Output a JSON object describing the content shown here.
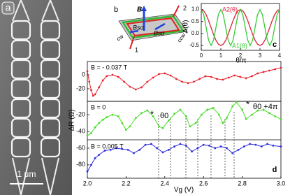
{
  "panel_a": {
    "label": "a",
    "scale_bar": "1 μm"
  },
  "panel_b": {
    "label": "b",
    "field": "B",
    "so_left": "Bso",
    "so_right": "Bso",
    "cw": "cw",
    "ccw": "ccw",
    "lead_1": "1",
    "lead_2": "2"
  },
  "chart_data": [
    {
      "type": "line",
      "label": "c",
      "xlabel": "θ/π",
      "ylabel": "A(θ)",
      "x": [
        0,
        0.125,
        0.25,
        0.375,
        0.5,
        0.625,
        0.75,
        0.875,
        1,
        1.125,
        1.25,
        1.375,
        1.5,
        1.625,
        1.75,
        1.875,
        2,
        2.125,
        2.25,
        2.375,
        2.5,
        2.625,
        2.75,
        2.875,
        3,
        3.125,
        3.25,
        3.375,
        3.5,
        3.625,
        3.75,
        3.875,
        4
      ],
      "xlim": [
        0,
        4
      ],
      "xticks": [
        0,
        1,
        2,
        3,
        4
      ],
      "ylim": [
        -0.7,
        1.25
      ],
      "yticks": [
        {
          "value": 1,
          "label": "1.0"
        },
        0.5,
        {
          "value": 0,
          "label": "0.0"
        },
        -0.5
      ],
      "series": [
        {
          "name": "A2(θ)",
          "color": "#e0203a",
          "values": [
            1,
            0.943,
            0.78,
            0.537,
            0.25,
            -0.037,
            -0.28,
            -0.443,
            -0.5,
            -0.443,
            -0.28,
            -0.037,
            0.25,
            0.537,
            0.78,
            0.943,
            1,
            0.943,
            0.78,
            0.537,
            0.25,
            -0.037,
            -0.28,
            -0.443,
            -0.5,
            -0.443,
            -0.28,
            -0.037,
            0.25,
            0.537,
            0.78,
            0.943,
            1
          ]
        },
        {
          "name": "A1(θ)",
          "color": "#33cc33",
          "values": [
            1,
            0.78,
            0.25,
            -0.28,
            -0.5,
            -0.28,
            0.25,
            0.78,
            1,
            0.78,
            0.25,
            -0.28,
            -0.5,
            -0.28,
            0.25,
            0.78,
            1,
            0.78,
            0.25,
            -0.28,
            -0.5,
            -0.28,
            0.25,
            0.78,
            1,
            0.78,
            0.25,
            -0.28,
            -0.5,
            -0.28,
            0.25,
            0.78,
            1
          ]
        }
      ]
    },
    {
      "type": "line",
      "markers": true,
      "xlim": [
        2,
        3
      ],
      "ylim": [
        -38,
        19
      ],
      "yticks": [
        0,
        -20
      ],
      "series": [
        {
          "name": "B = - 0.037 T",
          "color": "#e8202a",
          "x": [
            2.0,
            2.01,
            2.02,
            2.03,
            2.04,
            2.06,
            2.08,
            2.1,
            2.13,
            2.16,
            2.19,
            2.22,
            2.25,
            2.28,
            2.31,
            2.34,
            2.37,
            2.4,
            2.43,
            2.46,
            2.49,
            2.52,
            2.55,
            2.58,
            2.61,
            2.64,
            2.67,
            2.7,
            2.73,
            2.76,
            2.79,
            2.82,
            2.85,
            2.88,
            2.91,
            2.94,
            2.97,
            3.0
          ],
          "values": [
            5,
            -10,
            -22,
            -30,
            -28,
            -18,
            -8,
            -2,
            0,
            -3,
            -10,
            -17,
            -21,
            -18,
            -10,
            -4,
            1,
            2,
            -1,
            -6,
            -10,
            -12,
            -10,
            -6,
            -2,
            -3,
            -6,
            -7,
            -4,
            -1,
            -3,
            -5,
            -2,
            2,
            4,
            6,
            8,
            10
          ]
        }
      ]
    },
    {
      "type": "line",
      "markers": true,
      "label": "d",
      "xlabel": "Vg (V)",
      "ylabel": "ΔR (Ω)",
      "xlim": [
        2,
        3
      ],
      "xticks": [
        {
          "value": 2,
          "label": "2.0"
        },
        2.2,
        2.4,
        2.6,
        2.8,
        {
          "value": 3,
          "label": "3.0"
        }
      ],
      "ylim": [
        -96,
        -4
      ],
      "yticks": [
        -20,
        -40,
        -60,
        -80
      ],
      "annotations": [
        "*",
        "θ0",
        "*",
        "θ0 +4π"
      ],
      "series": [
        {
          "name": "B = 0",
          "color": "#44dd22",
          "x": [
            2.0,
            2.02,
            2.04,
            2.06,
            2.08,
            2.1,
            2.13,
            2.16,
            2.18,
            2.2,
            2.22,
            2.25,
            2.28,
            2.31,
            2.34,
            2.37,
            2.39,
            2.42,
            2.45,
            2.48,
            2.51,
            2.53,
            2.56,
            2.59,
            2.62,
            2.65,
            2.68,
            2.7,
            2.72,
            2.75,
            2.77,
            2.8,
            2.82,
            2.85,
            2.88,
            2.91,
            2.94,
            2.97,
            3.0
          ],
          "values": [
            -45,
            -42,
            -35,
            -30,
            -26,
            -23,
            -20,
            -22,
            -30,
            -38,
            -34,
            -24,
            -18,
            -15,
            -22,
            -34,
            -36,
            -27,
            -19,
            -14,
            -22,
            -34,
            -30,
            -20,
            -14,
            -12,
            -20,
            -30,
            -24,
            -10,
            -5,
            -14,
            -25,
            -20,
            -15,
            -14,
            -18,
            -22,
            -25
          ]
        },
        {
          "name": "B = 0.005 T",
          "color": "#2a2ae0",
          "x": [
            2.0,
            2.02,
            2.04,
            2.06,
            2.09,
            2.12,
            2.15,
            2.18,
            2.21,
            2.24,
            2.27,
            2.3,
            2.33,
            2.36,
            2.39,
            2.42,
            2.45,
            2.48,
            2.51,
            2.54,
            2.57,
            2.6,
            2.63,
            2.66,
            2.69,
            2.72,
            2.75,
            2.78,
            2.81,
            2.84,
            2.87,
            2.9,
            2.93,
            2.96,
            3.0
          ],
          "values": [
            -88,
            -80,
            -72,
            -68,
            -63,
            -62,
            -60,
            -61,
            -62,
            -66,
            -62,
            -56,
            -55,
            -60,
            -65,
            -62,
            -58,
            -55,
            -57,
            -64,
            -60,
            -56,
            -57,
            -60,
            -58,
            -60,
            -66,
            -62,
            -58,
            -55,
            -56,
            -58,
            -55,
            -57,
            -58
          ]
        }
      ]
    }
  ]
}
